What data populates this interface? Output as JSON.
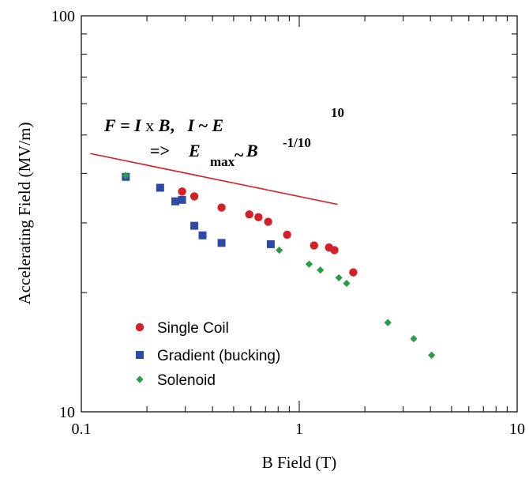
{
  "chart_data": {
    "type": "scatter",
    "xscale": "log",
    "yscale": "log",
    "xlim": [
      0.1,
      10
    ],
    "ylim": [
      10,
      100
    ],
    "xlabel": "B Field (T)",
    "ylabel": "Accelerating Field (MV/m)",
    "x_ticks": [
      {
        "value": 0.1,
        "label": "0.1"
      },
      {
        "value": 1,
        "label": "1"
      },
      {
        "value": 10,
        "label": "10"
      }
    ],
    "y_ticks": [
      {
        "value": 10,
        "label": "10"
      },
      {
        "value": 100,
        "label": "100"
      }
    ],
    "grid": false,
    "legend_position": "bottom-left",
    "series": [
      {
        "name": "Single Coil",
        "marker": "circle",
        "color": "#d42027",
        "points": [
          [
            0.29,
            36.0
          ],
          [
            0.33,
            35.0
          ],
          [
            0.44,
            32.8
          ],
          [
            0.59,
            31.5
          ],
          [
            0.65,
            31.0
          ],
          [
            0.72,
            30.2
          ],
          [
            0.88,
            28.0
          ],
          [
            1.17,
            26.3
          ],
          [
            1.37,
            26.0
          ],
          [
            1.45,
            25.6
          ],
          [
            1.77,
            22.5
          ]
        ]
      },
      {
        "name": "Gradient (bucking)",
        "marker": "square",
        "color": "#2e4aa6",
        "points": [
          [
            0.16,
            39.2
          ],
          [
            0.23,
            36.8
          ],
          [
            0.27,
            34.0
          ],
          [
            0.29,
            34.3
          ],
          [
            0.33,
            29.5
          ],
          [
            0.36,
            27.9
          ],
          [
            0.44,
            26.7
          ],
          [
            0.74,
            26.5
          ]
        ]
      },
      {
        "name": "Solenoid",
        "marker": "diamond",
        "color": "#2a9c48",
        "points": [
          [
            0.16,
            39.5
          ],
          [
            0.81,
            25.6
          ],
          [
            1.11,
            23.6
          ],
          [
            1.25,
            22.8
          ],
          [
            1.52,
            21.8
          ],
          [
            1.65,
            21.1
          ],
          [
            2.55,
            16.8
          ],
          [
            3.35,
            15.3
          ],
          [
            4.05,
            13.9
          ]
        ]
      }
    ],
    "fit_line": {
      "color": "#d42027",
      "points": [
        [
          0.11,
          44.9
        ],
        [
          1.5,
          33.4
        ]
      ]
    },
    "annotations": {
      "line1": {
        "F": "F",
        "eq1": " = ",
        "I1": "I",
        "x": " x ",
        "B1": "B",
        "comma": ",   ",
        "I2": "I",
        "tilde": " ~ ",
        "E1": "E",
        "exp10": "10"
      },
      "line2": {
        "arrow": "=> ",
        "E2": "E",
        "sub_max": "max",
        "tilde2": "~",
        "B2": "B",
        "exp_neg": "-1/10"
      }
    }
  }
}
